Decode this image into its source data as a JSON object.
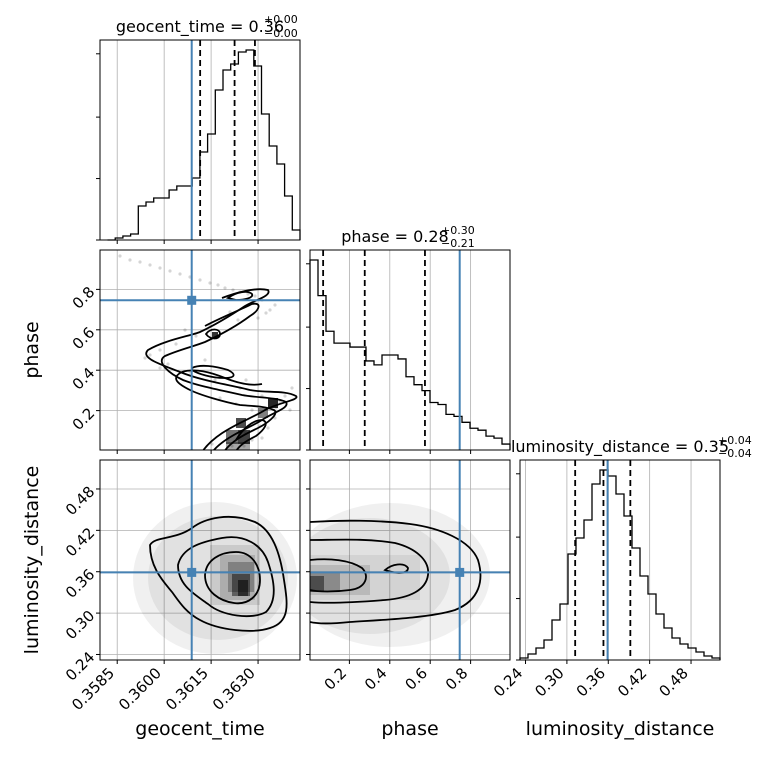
{
  "chart_data": {
    "type": "corner",
    "parameters": [
      "geocent_time",
      "phase",
      "luminosity_distance"
    ],
    "titles": {
      "geocent_time": {
        "prefix": "geocent_time = ",
        "value": "0.36",
        "plus": "+0.00",
        "minus": "−0.00"
      },
      "phase": {
        "prefix": "phase = ",
        "value": "0.28",
        "plus": "+0.30",
        "minus": "−0.21"
      },
      "luminosity_distance": {
        "prefix": "luminosity_distance = ",
        "value": "0.35",
        "plus": "+0.04",
        "minus": "−0.04"
      }
    },
    "axis_labels": {
      "geocent_time": "geocent_time",
      "phase": "phase",
      "luminosity_distance": "luminosity_distance"
    },
    "ranges": {
      "geocent_time": [
        0.35795,
        0.36434
      ],
      "phase": [
        0.005,
        0.995
      ],
      "luminosity_distance": [
        0.232,
        0.522
      ]
    },
    "ticks": {
      "geocent_time": [
        0.3585,
        0.36,
        0.3615,
        0.363
      ],
      "phase": [
        0.2,
        0.4,
        0.6,
        0.8
      ],
      "luminosity_distance": [
        0.24,
        0.3,
        0.36,
        0.42,
        0.48
      ]
    },
    "tick_labels": {
      "geocent_time": [
        "0.3585",
        "0.3600",
        "0.3615",
        "0.3630"
      ],
      "phase": [
        "0.2",
        "0.4",
        "0.6",
        "0.8"
      ],
      "luminosity_distance": [
        "0.24",
        "0.30",
        "0.36",
        "0.42",
        "0.48"
      ]
    },
    "truths": {
      "geocent_time": 0.36088,
      "phase": 0.746,
      "luminosity_distance": 0.359
    },
    "quantiles": {
      "geocent_time": [
        0.36115,
        0.36225,
        0.3629
      ],
      "phase": [
        0.07,
        0.276,
        0.574
      ],
      "luminosity_distance": [
        0.312,
        0.353,
        0.392
      ]
    },
    "histograms": {
      "geocent_time": {
        "edges": [
          0.35819,
          0.36434
        ],
        "counts": [
          0,
          1,
          2,
          3,
          17,
          19,
          21,
          21,
          25,
          27,
          27,
          31,
          44,
          53,
          75,
          85,
          88,
          94,
          95,
          87,
          63,
          47,
          38,
          22,
          5
        ]
      },
      "phase": {
        "edges": [
          0.005,
          0.995
        ],
        "counts": [
          96,
          78,
          60,
          54,
          54,
          52,
          52,
          45,
          43,
          48,
          48,
          46,
          37,
          33,
          30,
          24,
          23,
          18,
          17,
          14,
          11,
          10,
          7,
          6,
          3
        ]
      },
      "luminosity_distance": {
        "edges": [
          0.232,
          0.522
        ],
        "counts": [
          1,
          3,
          6,
          10,
          20,
          28,
          53,
          61,
          70,
          88,
          95,
          92,
          83,
          72,
          56,
          42,
          33,
          23,
          16,
          11,
          8,
          6,
          4,
          2,
          1
        ]
      }
    },
    "colors": {
      "truth": "#4682b4",
      "contour": "#000000",
      "hist": "#000000",
      "grid": "#b0b0b0"
    },
    "grid": true
  }
}
